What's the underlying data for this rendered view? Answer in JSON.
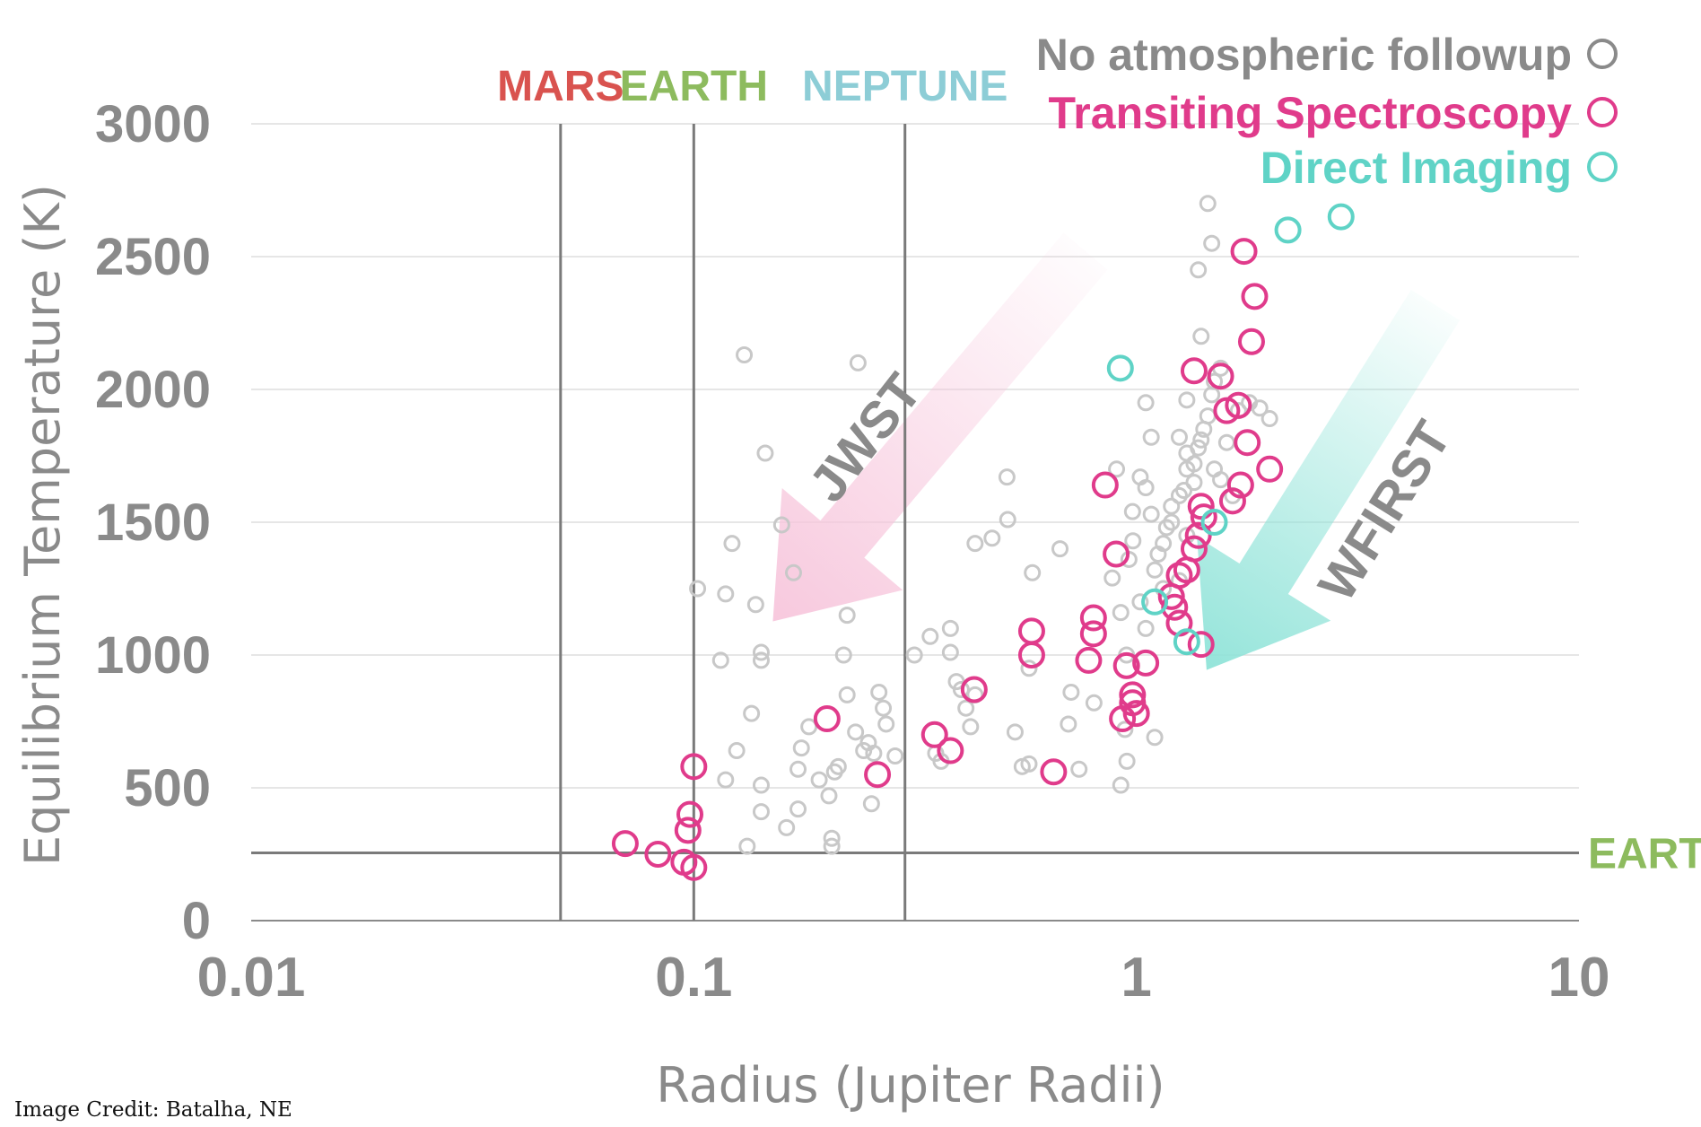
{
  "chart_data": {
    "type": "scatter",
    "xlabel": "Radius (Jupiter Radii)",
    "ylabel": "Equilibrium Temperature (K)",
    "xscale": "log",
    "xlim": [
      0.01,
      10
    ],
    "ylim": [
      0,
      3000
    ],
    "x_ticks": [
      "0.01",
      "0.1",
      "1",
      "10"
    ],
    "y_ticks": [
      "0",
      "500",
      "1000",
      "1500",
      "2000",
      "2500",
      "3000"
    ],
    "grid": "horizontal",
    "legend_position": "top-right",
    "reference_lines": {
      "vertical": [
        {
          "label": "MARS",
          "x": 0.05,
          "color": "#d9534f"
        },
        {
          "label": "EARTH",
          "x": 0.1,
          "color": "#8dbb5e"
        },
        {
          "label": "NEPTUNE",
          "x": 0.3,
          "color": "#8dcdd6"
        }
      ],
      "horizontal": [
        {
          "label": "EARTH",
          "y": 255,
          "color": "#8dbb5e"
        }
      ]
    },
    "arrows": [
      {
        "label": "JWST",
        "color": "#f7c6dc"
      },
      {
        "label": "WFIRST",
        "color": "#8fe3d8"
      }
    ],
    "series": [
      {
        "name": "No atmospheric followup",
        "color": "#c8c8c8",
        "points": [
          [
            0.13,
            2130
          ],
          [
            0.235,
            2100
          ],
          [
            0.145,
            1760
          ],
          [
            0.158,
            1490
          ],
          [
            0.122,
            1420
          ],
          [
            0.102,
            1250
          ],
          [
            0.118,
            1230
          ],
          [
            0.138,
            1190
          ],
          [
            0.168,
            1310
          ],
          [
            0.222,
            1150
          ],
          [
            0.115,
            980
          ],
          [
            0.142,
            1010
          ],
          [
            0.142,
            980
          ],
          [
            0.135,
            780
          ],
          [
            0.125,
            640
          ],
          [
            0.118,
            530
          ],
          [
            0.142,
            510
          ],
          [
            0.142,
            410
          ],
          [
            0.132,
            280
          ],
          [
            0.162,
            350
          ],
          [
            0.172,
            420
          ],
          [
            0.172,
            570
          ],
          [
            0.175,
            650
          ],
          [
            0.182,
            730
          ],
          [
            0.192,
            530
          ],
          [
            0.202,
            470
          ],
          [
            0.208,
            560
          ],
          [
            0.212,
            580
          ],
          [
            0.218,
            1000
          ],
          [
            0.222,
            850
          ],
          [
            0.232,
            710
          ],
          [
            0.242,
            640
          ],
          [
            0.248,
            670
          ],
          [
            0.255,
            630
          ],
          [
            0.262,
            860
          ],
          [
            0.268,
            800
          ],
          [
            0.272,
            740
          ],
          [
            0.285,
            620
          ],
          [
            0.205,
            310
          ],
          [
            0.205,
            280
          ],
          [
            0.252,
            440
          ],
          [
            0.315,
            1000
          ],
          [
            0.342,
            1070
          ],
          [
            0.352,
            630
          ],
          [
            0.362,
            600
          ],
          [
            0.38,
            1100
          ],
          [
            0.38,
            1010
          ],
          [
            0.392,
            900
          ],
          [
            0.402,
            870
          ],
          [
            0.412,
            800
          ],
          [
            0.432,
            850
          ],
          [
            0.422,
            730
          ],
          [
            0.432,
            1420
          ],
          [
            0.472,
            1440
          ],
          [
            0.512,
            1510
          ],
          [
            0.51,
            1670
          ],
          [
            0.572,
            950
          ],
          [
            0.532,
            710
          ],
          [
            0.572,
            590
          ],
          [
            0.552,
            580
          ],
          [
            0.582,
            1310
          ],
          [
            0.672,
            1400
          ],
          [
            0.712,
            860
          ],
          [
            0.702,
            740
          ],
          [
            0.742,
            570
          ],
          [
            0.802,
            820
          ],
          [
            0.922,
            1160
          ],
          [
            0.882,
            1290
          ],
          [
            0.902,
            1700
          ],
          [
            0.962,
            1360
          ],
          [
            0.982,
            1430
          ],
          [
            1.02,
            1670
          ],
          [
            1.05,
            1630
          ],
          [
            1.08,
            1530
          ],
          [
            1.02,
            1200
          ],
          [
            0.95,
            1000
          ],
          [
            0.942,
            720
          ],
          [
            0.952,
            600
          ],
          [
            0.922,
            510
          ],
          [
            1.1,
            690
          ],
          [
            1.05,
            1100
          ],
          [
            1.1,
            1320
          ],
          [
            1.12,
            1380
          ],
          [
            1.15,
            1420
          ],
          [
            1.17,
            1480
          ],
          [
            1.2,
            1560
          ],
          [
            1.25,
            1600
          ],
          [
            1.28,
            1620
          ],
          [
            1.3,
            1700
          ],
          [
            1.35,
            1720
          ],
          [
            1.38,
            1780
          ],
          [
            1.4,
            1810
          ],
          [
            1.42,
            1850
          ],
          [
            1.45,
            1900
          ],
          [
            1.48,
            1980
          ],
          [
            1.5,
            2030
          ],
          [
            1.55,
            2080
          ],
          [
            1.4,
            2200
          ],
          [
            1.38,
            2450
          ],
          [
            1.48,
            2550
          ],
          [
            1.45,
            2700
          ],
          [
            1.25,
            1820
          ],
          [
            1.3,
            1760
          ],
          [
            1.35,
            1650
          ],
          [
            1.5,
            1700
          ],
          [
            1.6,
            1800
          ],
          [
            1.7,
            1920
          ],
          [
            1.8,
            1950
          ],
          [
            1.9,
            1930
          ],
          [
            2.0,
            1890
          ],
          [
            1.65,
            1600
          ],
          [
            1.55,
            1660
          ],
          [
            1.2,
            1500
          ],
          [
            1.05,
            1950
          ],
          [
            1.3,
            1960
          ],
          [
            1.25,
            1280
          ],
          [
            1.15,
            1250
          ],
          [
            1.08,
            1820
          ],
          [
            0.98,
            1540
          ],
          [
            1.3,
            1450
          ]
        ]
      },
      {
        "name": "Transiting Spectroscopy",
        "color": "#e03b8b",
        "points": [
          [
            0.07,
            290
          ],
          [
            0.083,
            250
          ],
          [
            0.095,
            220
          ],
          [
            0.1,
            200
          ],
          [
            0.097,
            340
          ],
          [
            0.098,
            400
          ],
          [
            0.1,
            580
          ],
          [
            0.2,
            760
          ],
          [
            0.26,
            550
          ],
          [
            0.35,
            700
          ],
          [
            0.38,
            640
          ],
          [
            0.43,
            870
          ],
          [
            0.58,
            1090
          ],
          [
            0.58,
            1000
          ],
          [
            0.65,
            560
          ],
          [
            0.8,
            1140
          ],
          [
            0.8,
            1080
          ],
          [
            0.78,
            980
          ],
          [
            0.85,
            1640
          ],
          [
            0.9,
            1380
          ],
          [
            0.93,
            760
          ],
          [
            0.95,
            960
          ],
          [
            0.98,
            850
          ],
          [
            0.98,
            820
          ],
          [
            1.0,
            780
          ],
          [
            1.05,
            970
          ],
          [
            1.2,
            1220
          ],
          [
            1.22,
            1180
          ],
          [
            1.25,
            1120
          ],
          [
            1.25,
            1300
          ],
          [
            1.3,
            1320
          ],
          [
            1.35,
            1400
          ],
          [
            1.38,
            1450
          ],
          [
            1.4,
            1560
          ],
          [
            1.42,
            1520
          ],
          [
            1.4,
            1040
          ],
          [
            1.35,
            2070
          ],
          [
            1.55,
            2050
          ],
          [
            1.6,
            1920
          ],
          [
            1.65,
            1580
          ],
          [
            1.7,
            1940
          ],
          [
            1.72,
            1640
          ],
          [
            1.78,
            1800
          ],
          [
            1.75,
            2520
          ],
          [
            1.85,
            2350
          ],
          [
            1.82,
            2180
          ],
          [
            2.0,
            1700
          ]
        ]
      },
      {
        "name": "Direct Imaging",
        "color": "#5fd3c6",
        "points": [
          [
            0.92,
            2080
          ],
          [
            1.1,
            1200
          ],
          [
            1.3,
            1050
          ],
          [
            1.5,
            1500
          ],
          [
            2.2,
            2600
          ],
          [
            2.9,
            2650
          ]
        ]
      }
    ]
  }
}
